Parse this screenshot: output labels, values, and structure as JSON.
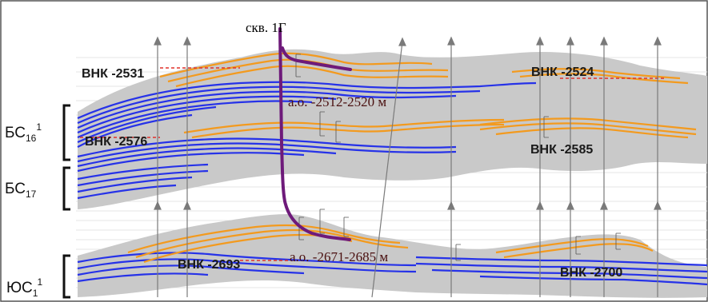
{
  "well": {
    "name": "скв. 1Г"
  },
  "intervals": [
    {
      "text": "а.о. -2512-2520 м"
    },
    {
      "text": "а.о. -2671-2685 м"
    }
  ],
  "owc": [
    {
      "text": "ВНК -2531"
    },
    {
      "text": "ВНК -2524"
    },
    {
      "text": "ВНК -2576"
    },
    {
      "text": "ВНК -2585"
    },
    {
      "text": "ВНК -2693"
    },
    {
      "text": "ВНК -2700"
    }
  ],
  "strata": [
    {
      "base": "БС",
      "sub": "16",
      "sup": "1"
    },
    {
      "base": "БС",
      "sub": "17",
      "sup": ""
    },
    {
      "base": "ЮС",
      "sub": "1",
      "sup": "1"
    }
  ],
  "colors": {
    "body": "#c8c8c8",
    "oil": "#f39a1e",
    "water": "#2430e8",
    "well": "#6e1a7a",
    "contact_dash": "#e0302a"
  }
}
